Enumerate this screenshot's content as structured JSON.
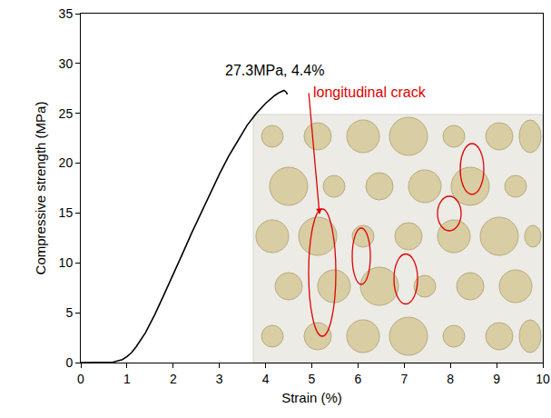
{
  "chart_data": {
    "type": "line",
    "x_label": "Strain (%)",
    "y_label": "Compressive strength (MPa)",
    "x": [
      0,
      0.5,
      0.7,
      0.9,
      1.0,
      1.1,
      1.2,
      1.4,
      1.6,
      1.8,
      2.0,
      2.2,
      2.4,
      2.6,
      2.8,
      3.0,
      3.2,
      3.4,
      3.6,
      3.8,
      4.0,
      4.2,
      4.3,
      4.4,
      4.45,
      4.47
    ],
    "values": [
      0,
      0,
      0.05,
      0.3,
      0.6,
      1.0,
      1.6,
      3.0,
      4.8,
      6.8,
      8.8,
      10.9,
      13.0,
      15.0,
      17.0,
      18.9,
      20.7,
      22.3,
      23.8,
      25.0,
      26.0,
      26.8,
      27.1,
      27.3,
      27.1,
      26.9
    ],
    "color": "#000000",
    "xlim": [
      0,
      10
    ],
    "ylim": [
      0,
      35
    ],
    "xticks": [
      0,
      1,
      2,
      3,
      4,
      5,
      6,
      7,
      8,
      9,
      10
    ],
    "yticks": [
      0,
      5,
      10,
      15,
      20,
      25,
      30,
      35
    ],
    "grid": false,
    "annotations": [
      "27.3MPa, 4.4%",
      "longitudinal crack"
    ]
  }
}
